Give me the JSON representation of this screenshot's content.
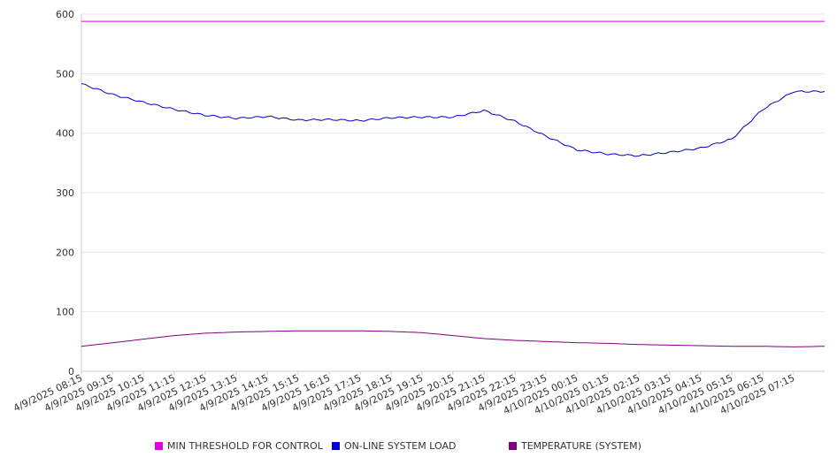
{
  "chart_data": {
    "type": "line",
    "title": "",
    "xlabel": "",
    "ylabel": "",
    "ylim": [
      0,
      600
    ],
    "yticks": [
      0,
      100,
      200,
      300,
      400,
      500,
      600
    ],
    "grid": "horizontal",
    "legend_placement": "bottom",
    "x_tick_labels": [
      "4/9/2025 08:15",
      "4/9/2025 09:15",
      "4/9/2025 10:15",
      "4/9/2025 11:15",
      "4/9/2025 12:15",
      "4/9/2025 13:15",
      "4/9/2025 14:15",
      "4/9/2025 15:15",
      "4/9/2025 16:15",
      "4/9/2025 17:15",
      "4/9/2025 18:15",
      "4/9/2025 19:15",
      "4/9/2025 20:15",
      "4/9/2025 21:15",
      "4/9/2025 22:15",
      "4/9/2025 23:15",
      "4/10/2025 00:15",
      "4/10/2025 01:15",
      "4/10/2025 02:15",
      "4/10/2025 03:15",
      "4/10/2025 04:15",
      "4/10/2025 05:15",
      "4/10/2025 06:15",
      "4/10/2025 07:15"
    ],
    "x": [
      "4/9/2025 08:15",
      "4/9/2025 09:15",
      "4/9/2025 10:15",
      "4/9/2025 11:15",
      "4/9/2025 12:15",
      "4/9/2025 13:15",
      "4/9/2025 14:15",
      "4/9/2025 15:15",
      "4/9/2025 16:15",
      "4/9/2025 17:15",
      "4/9/2025 18:15",
      "4/9/2025 19:15",
      "4/9/2025 20:15",
      "4/9/2025 21:15",
      "4/9/2025 22:15",
      "4/9/2025 23:15",
      "4/10/2025 00:15",
      "4/10/2025 01:15",
      "4/10/2025 02:15",
      "4/10/2025 03:15",
      "4/10/2025 04:15",
      "4/10/2025 05:15",
      "4/10/2025 06:15",
      "4/10/2025 07:15",
      "4/10/2025 08:15"
    ],
    "series": [
      {
        "name": "MIN THRESHOLD FOR CONTROL",
        "color": "#e000e0",
        "values": [
          588,
          588,
          588,
          588,
          588,
          588,
          588,
          588,
          588,
          588,
          588,
          588,
          588,
          588,
          588,
          588,
          588,
          588,
          588,
          588,
          588,
          588,
          588,
          588,
          588
        ]
      },
      {
        "name": "ON-LINE SYSTEM LOAD",
        "color": "#0000cc",
        "values": [
          483,
          465,
          452,
          440,
          430,
          425,
          428,
          422,
          423,
          421,
          426,
          427,
          427,
          438,
          420,
          395,
          372,
          365,
          362,
          368,
          375,
          390,
          440,
          470,
          470
        ]
      },
      {
        "name": "TEMPERATURE (SYSTEM)",
        "color": "#800080",
        "values": [
          42,
          48,
          54,
          60,
          64,
          66,
          67,
          68,
          68,
          68,
          67,
          65,
          60,
          55,
          52,
          50,
          48,
          47,
          45,
          44,
          43,
          42,
          42,
          41,
          42
        ]
      }
    ]
  }
}
